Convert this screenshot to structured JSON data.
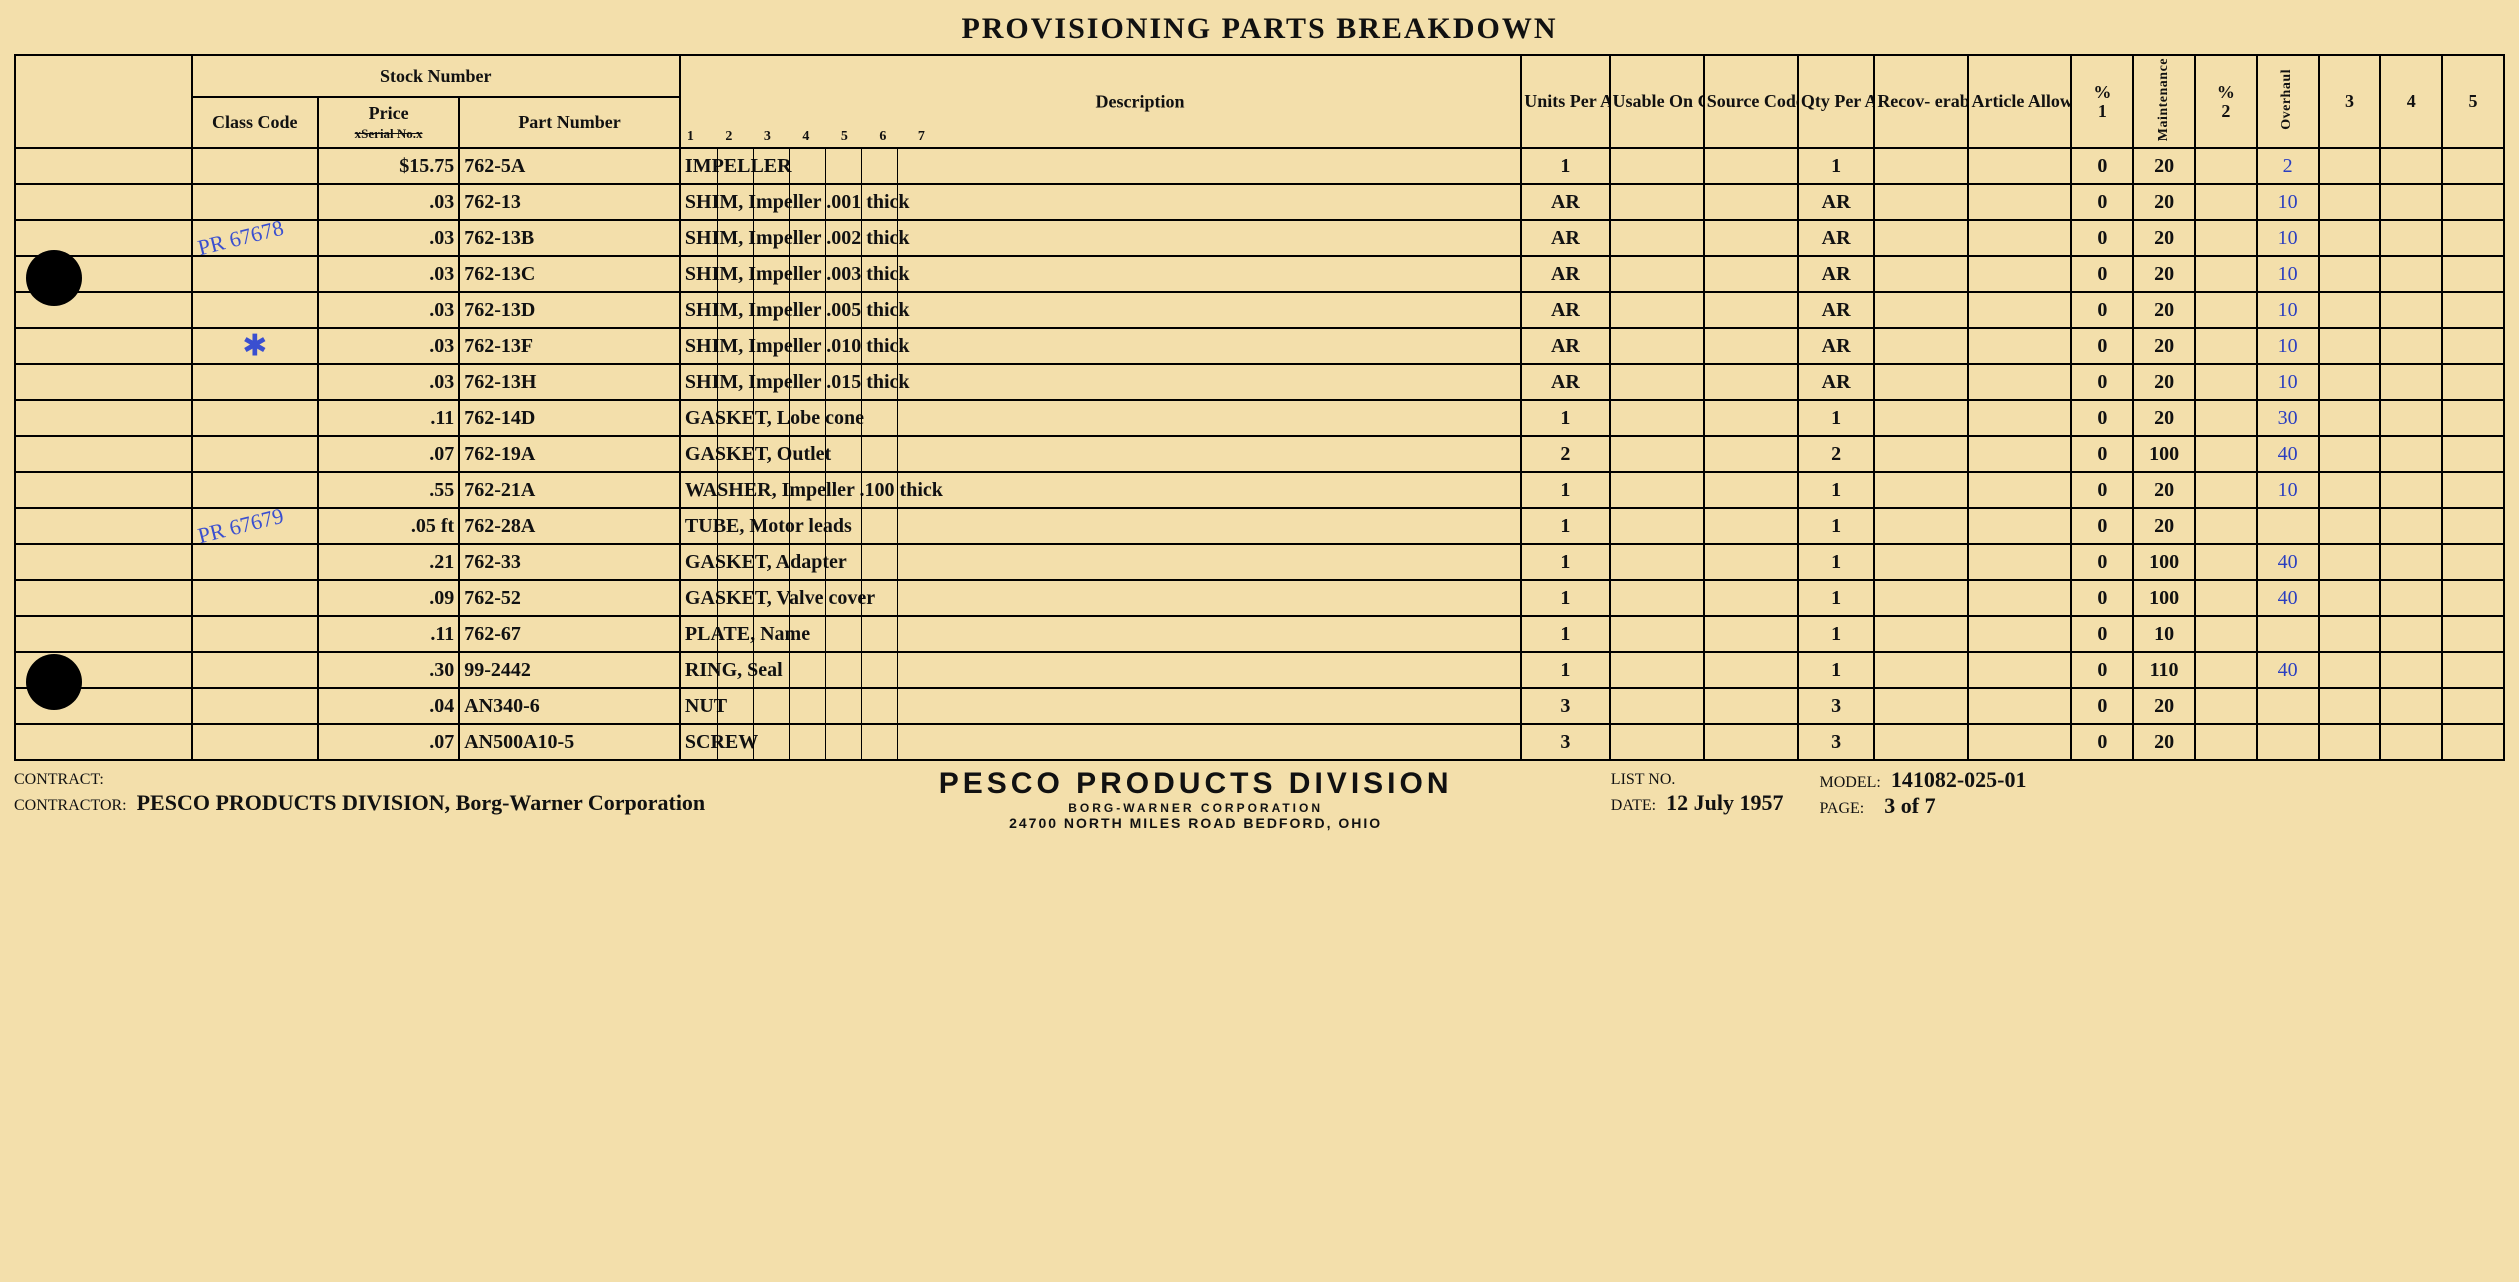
{
  "title": "PROVISIONING PARTS BREAKDOWN",
  "headers": {
    "stock_number": "Stock Number",
    "class_code": "Class Code",
    "price_label": "Price",
    "price_strike": "xSerial No.x",
    "part_number": "Part Number",
    "description": "Description",
    "ticks": [
      "1",
      "2",
      "3",
      "4",
      "5",
      "6",
      "7"
    ],
    "units_per_assy": "Units Per Assy",
    "usable_on_code": "Usable On Code",
    "source_code": "Source Code",
    "qty_per_article": "Qty Per Ar- ticle",
    "recoverable_status": "Recov- erable Status",
    "article_allow_list": "Article Allow List",
    "pct1_top": "%",
    "pct1_bot": "1",
    "maintenance": "Maintenance",
    "pct2_top": "%",
    "pct2_bot": "2",
    "overhaul": "Overhaul",
    "n3": "3",
    "n4": "4",
    "n5": "5"
  },
  "rows": [
    {
      "class": "",
      "price": "$15.75",
      "part": "762-5A",
      "desc": "IMPELLER",
      "upa": "1",
      "qpa": "1",
      "p1": "0",
      "maint": "20",
      "ovh": "2"
    },
    {
      "class": "",
      "price": ".03",
      "part": "762-13",
      "desc": "SHIM, Impeller       .001 thick",
      "upa": "AR",
      "qpa": "AR",
      "p1": "0",
      "maint": "20",
      "ovh": "10"
    },
    {
      "class": "",
      "annot": "PR 67678",
      "price": ".03",
      "part": "762-13B",
      "desc": "SHIM, Impeller       .002 thick",
      "upa": "AR",
      "qpa": "AR",
      "p1": "0",
      "maint": "20",
      "ovh": "10"
    },
    {
      "class": "",
      "price": ".03",
      "part": "762-13C",
      "desc": "SHIM, Impeller       .003 thick",
      "upa": "AR",
      "qpa": "AR",
      "p1": "0",
      "maint": "20",
      "ovh": "10"
    },
    {
      "class": "",
      "price": ".03",
      "part": "762-13D",
      "desc": "SHIM, Impeller       .005 thick",
      "upa": "AR",
      "qpa": "AR",
      "p1": "0",
      "maint": "20",
      "ovh": "10"
    },
    {
      "class": "",
      "xmark": "✱",
      "price": ".03",
      "part": "762-13F",
      "desc": "SHIM, Impeller       .010 thick",
      "upa": "AR",
      "qpa": "AR",
      "p1": "0",
      "maint": "20",
      "ovh": "10"
    },
    {
      "class": "",
      "price": ".03",
      "part": "762-13H",
      "desc": "SHIM, Impeller       .015 thick",
      "upa": "AR",
      "qpa": "AR",
      "p1": "0",
      "maint": "20",
      "ovh": "10"
    },
    {
      "class": "",
      "price": ".11",
      "part": "762-14D",
      "desc": "GASKET, Lobe cone",
      "upa": "1",
      "qpa": "1",
      "p1": "0",
      "maint": "20",
      "ovh": "30"
    },
    {
      "class": "",
      "price": ".07",
      "part": "762-19A",
      "desc": "GASKET, Outlet",
      "upa": "2",
      "qpa": "2",
      "p1": "0",
      "maint": "100",
      "ovh": "40"
    },
    {
      "class": "",
      "price": ".55",
      "part": "762-21A",
      "desc": "WASHER, Impeller    .100 thick",
      "upa": "1",
      "qpa": "1",
      "p1": "0",
      "maint": "20",
      "ovh": "10"
    },
    {
      "class": "",
      "annot": "PR 67679",
      "price": ".05 ft",
      "part": "762-28A",
      "desc": "TUBE, Motor leads",
      "upa": "1",
      "qpa": "1",
      "p1": "0",
      "maint": "20",
      "ovh": ""
    },
    {
      "class": "",
      "price": ".21",
      "part": "762-33",
      "desc": "GASKET, Adapter",
      "upa": "1",
      "qpa": "1",
      "p1": "0",
      "maint": "100",
      "ovh": "40"
    },
    {
      "class": "",
      "price": ".09",
      "part": "762-52",
      "desc": "GASKET, Valve cover",
      "upa": "1",
      "qpa": "1",
      "p1": "0",
      "maint": "100",
      "ovh": "40"
    },
    {
      "class": "",
      "price": ".11",
      "part": "762-67",
      "desc": "PLATE, Name",
      "upa": "1",
      "qpa": "1",
      "p1": "0",
      "maint": "10",
      "ovh": ""
    },
    {
      "class": "",
      "price": ".30",
      "part": "99-2442",
      "desc": "RING, Seal",
      "upa": "1",
      "qpa": "1",
      "p1": "0",
      "maint": "110",
      "ovh": "40"
    },
    {
      "class": "",
      "price": ".04",
      "part": "AN340-6",
      "desc": "NUT",
      "upa": "3",
      "qpa": "3",
      "p1": "0",
      "maint": "20",
      "ovh": ""
    },
    {
      "class": "",
      "price": ".07",
      "part": "AN500A10-5",
      "desc": "SCREW",
      "upa": "3",
      "qpa": "3",
      "p1": "0",
      "maint": "20",
      "ovh": ""
    }
  ],
  "footer": {
    "contract_label": "CONTRACT:",
    "contractor_label": "CONTRACTOR:",
    "contractor": "PESCO PRODUCTS DIVISION, Borg-Warner Corporation",
    "company_big": "PESCO PRODUCTS DIVISION",
    "company_sub": "BORG-WARNER CORPORATION",
    "company_addr": "24700 NORTH MILES ROAD      BEDFORD, OHIO",
    "list_no_label": "LIST NO.",
    "date_label": "DATE:",
    "date": "12 July 1957",
    "model_label": "MODEL:",
    "model": "141082-025-01",
    "page_label": "PAGE:",
    "page": "3 of 7"
  },
  "colors": {
    "paper": "#f3dfab",
    "ink": "#111",
    "pen": "#2a3ec0",
    "line": "#000"
  }
}
